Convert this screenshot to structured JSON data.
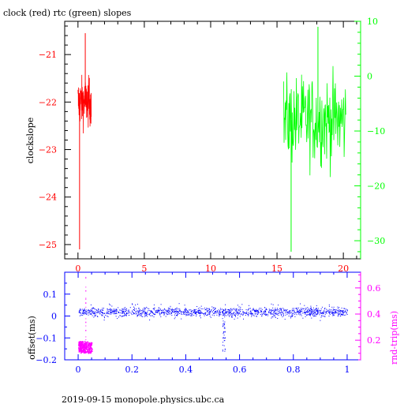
{
  "title": "clock (red) rtc (green) slopes",
  "footer": "2019-09-15  monopole.physics.ubc.ca",
  "colors": {
    "red": "#ff0000",
    "green": "#00ff00",
    "blue": "#0000ff",
    "magenta": "#ff00ff",
    "axis": "#000000"
  },
  "chart_data": [
    {
      "type": "line",
      "ylabel": "clockslope",
      "xlim": [
        -1,
        21.3
      ],
      "ylim": [
        -25.3,
        -20.3
      ],
      "y2lim": [
        -33.3,
        10
      ],
      "xticks": [
        "0",
        "5",
        "10",
        "15",
        "20"
      ],
      "yticks": [
        "-21",
        "-22",
        "-23",
        "-24",
        "-25"
      ],
      "y2ticks": [
        "10",
        "0",
        "-10",
        "-20",
        "-30"
      ],
      "series": [
        {
          "name": "clock",
          "axis": "left",
          "x_range": [
            0,
            1.0
          ],
          "center": -22.0,
          "spread": 0.25,
          "spikes": [
            -20.55,
            -25.1
          ]
        },
        {
          "name": "rtc",
          "axis": "right",
          "x_range": [
            15.5,
            20.2
          ],
          "center": -8,
          "spread": 4,
          "spikes": [
            9,
            -32
          ]
        }
      ]
    },
    {
      "type": "scatter",
      "ylabel": "offset(ms)",
      "y2label": "rnd-trip(ms)",
      "xlim": [
        -0.05,
        1.05
      ],
      "ylim": [
        -0.2,
        0.2
      ],
      "y2lim": [
        0.05,
        0.72
      ],
      "xticks": [
        "0",
        "0.2",
        "0.4",
        "0.6",
        "0.8",
        "1"
      ],
      "yticks": [
        "0.1",
        "0",
        "-0.1",
        "-0.2"
      ],
      "y2ticks": [
        "0.6",
        "0.4",
        "0.2"
      ],
      "series": [
        {
          "name": "offset",
          "axis": "left",
          "x_range": [
            0,
            1
          ],
          "center": 0.02,
          "spread": 0.03,
          "dip": {
            "x": 0.54,
            "min": -0.18
          }
        },
        {
          "name": "rnd-trip",
          "axis": "right",
          "x_range": [
            0,
            0.05
          ],
          "center": 0.15,
          "spread": 0.05
        }
      ]
    }
  ]
}
